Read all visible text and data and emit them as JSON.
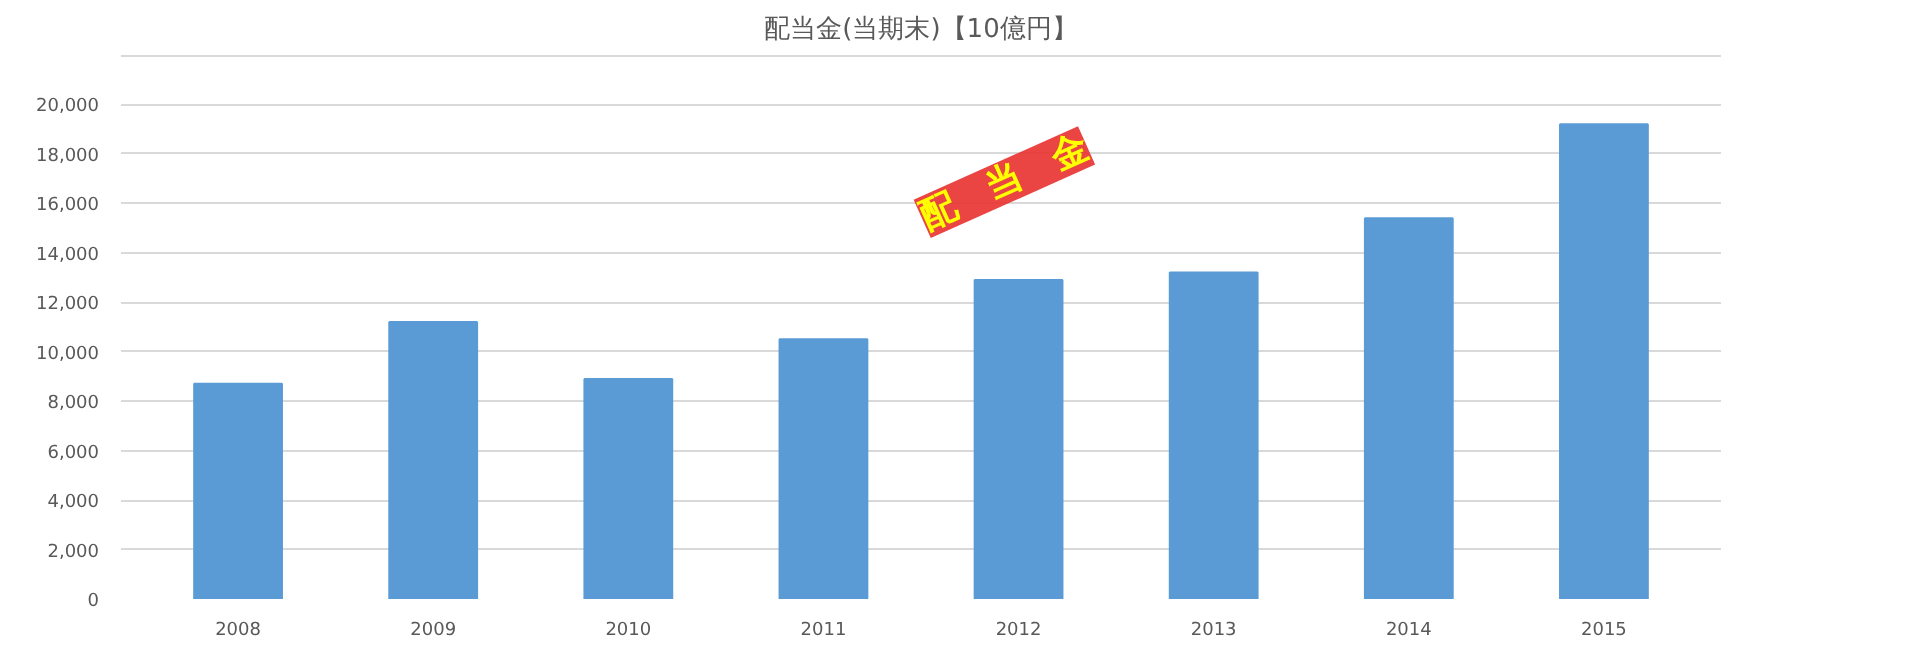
{
  "chart_data": {
    "type": "bar",
    "title": "配当金(当期末)【10億円】",
    "categories": [
      "2008",
      "2009",
      "2010",
      "2011",
      "2012",
      "2013",
      "2014",
      "2015"
    ],
    "values": [
      8700,
      11200,
      8900,
      10500,
      12900,
      13200,
      15400,
      19200
    ],
    "color": "#5b9bd5",
    "ylim": [
      0,
      22000
    ],
    "yticks": [
      {
        "value": 0,
        "label": "0"
      },
      {
        "value": 2000,
        "label": "2,000"
      },
      {
        "value": 4000,
        "label": "4,000"
      },
      {
        "value": 6000,
        "label": "6,000"
      },
      {
        "value": 8000,
        "label": "8,000"
      },
      {
        "value": 10000,
        "label": "10,000"
      },
      {
        "value": 12000,
        "label": "12,000"
      },
      {
        "value": 14000,
        "label": "14,000"
      },
      {
        "value": 16000,
        "label": "16,000"
      },
      {
        "value": 18000,
        "label": "18,000"
      },
      {
        "value": 20000,
        "label": "20,000"
      },
      {
        "value": 22000,
        "label": null
      }
    ],
    "grid": "y",
    "annotations": [
      "配　当　金"
    ]
  }
}
